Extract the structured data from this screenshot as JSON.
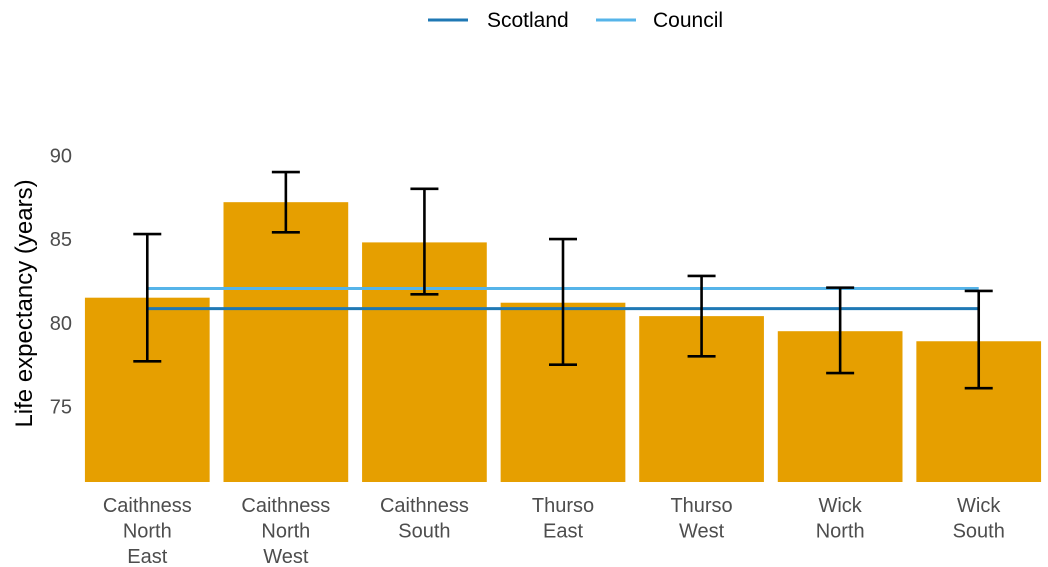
{
  "chart_data": {
    "type": "bar",
    "title": "",
    "xlabel": "",
    "ylabel": "Life expectancy (years)",
    "categories": [
      [
        "Caithness",
        "North",
        "East"
      ],
      [
        "Caithness",
        "North",
        "West"
      ],
      [
        "Caithness",
        "South"
      ],
      [
        "Thurso",
        "East"
      ],
      [
        "Thurso",
        "West"
      ],
      [
        "Wick",
        "North"
      ],
      [
        "Wick",
        "South"
      ]
    ],
    "values": [
      81.5,
      87.2,
      84.8,
      81.2,
      80.4,
      79.5,
      78.9
    ],
    "error_low": [
      77.7,
      85.4,
      81.7,
      77.5,
      78.0,
      77.0,
      76.1
    ],
    "error_high": [
      85.3,
      89.0,
      88.0,
      85.0,
      82.8,
      82.1,
      81.9
    ],
    "yticks": [
      75,
      80,
      85,
      90
    ],
    "ylim": [
      70.5,
      93
    ],
    "grid": false,
    "legend_position": "top-center",
    "bar_color": "#E69F00",
    "error_bar_color": "#000000",
    "reference_lines": [
      {
        "name": "Scotland",
        "value": 80.85,
        "color": "#1F78B4"
      },
      {
        "name": "Council",
        "value": 82.05,
        "color": "#56B4E9"
      }
    ]
  }
}
